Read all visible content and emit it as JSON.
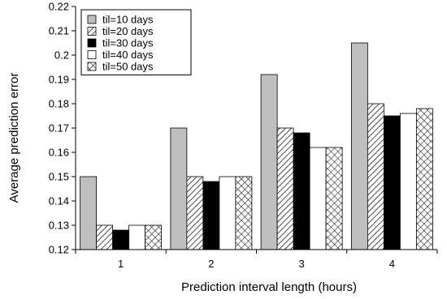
{
  "chart_data": {
    "type": "bar",
    "title": "",
    "xlabel": "Prediction interval length (hours)",
    "ylabel": "Average prediction error",
    "ylim": [
      0.12,
      0.22
    ],
    "yticks": [
      "0.12",
      "0.13",
      "0.14",
      "0.15",
      "0.16",
      "0.17",
      "0.18",
      "0.19",
      "0.2",
      "0.21",
      "0.22"
    ],
    "categories": [
      "1",
      "2",
      "3",
      "4"
    ],
    "grid": false,
    "legend_position": "top-left",
    "series": [
      {
        "name": "til=10 days",
        "values": [
          0.15,
          0.17,
          0.192,
          0.205
        ],
        "pattern": "solid-gray",
        "color": "#bfbfbf"
      },
      {
        "name": "til=20 days",
        "values": [
          0.13,
          0.15,
          0.17,
          0.18
        ],
        "pattern": "diagonal-hatch",
        "color": "#ffffff"
      },
      {
        "name": "til=30 days",
        "values": [
          0.128,
          0.148,
          0.168,
          0.175
        ],
        "pattern": "solid-black",
        "color": "#000000"
      },
      {
        "name": "til=40 days",
        "values": [
          0.13,
          0.15,
          0.162,
          0.176
        ],
        "pattern": "solid-white",
        "color": "#ffffff"
      },
      {
        "name": "til=50 days",
        "values": [
          0.13,
          0.15,
          0.162,
          0.178
        ],
        "pattern": "crosshatch",
        "color": "#ffffff"
      }
    ]
  }
}
